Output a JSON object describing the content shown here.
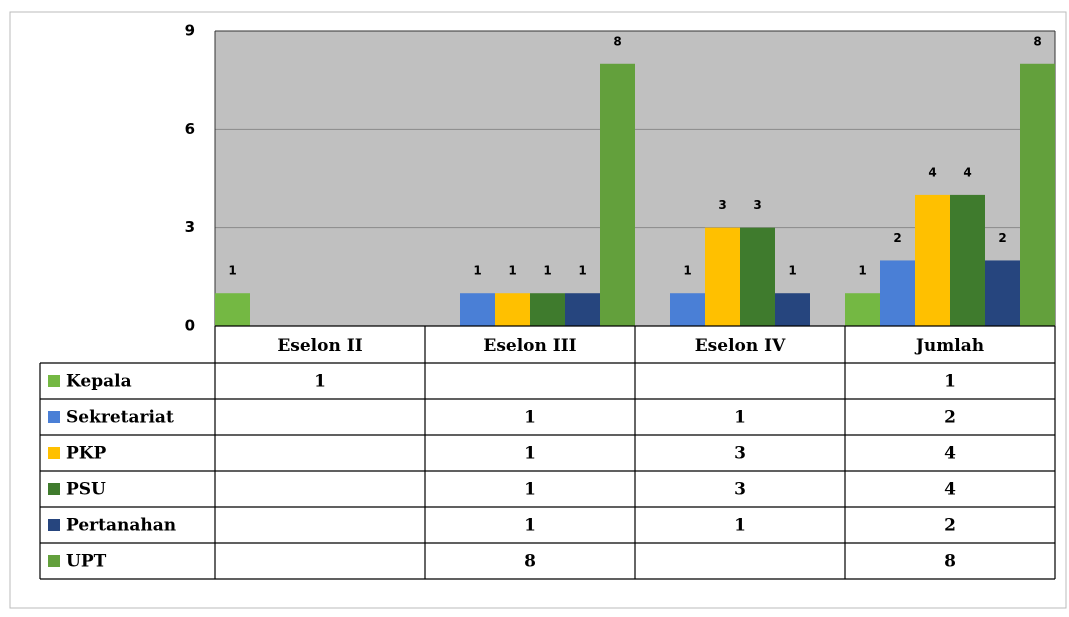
{
  "chart_data": {
    "type": "bar",
    "categories": [
      "Eselon II",
      "Eselon III",
      "Eselon IV",
      "Jumlah"
    ],
    "series": [
      {
        "name": "Kepala",
        "color": "#74b843",
        "values": [
          1,
          null,
          null,
          1
        ]
      },
      {
        "name": "Sekretariat",
        "color": "#4a7fd6",
        "values": [
          null,
          1,
          1,
          2
        ]
      },
      {
        "name": "PKP",
        "color": "#ffc000",
        "values": [
          null,
          1,
          3,
          4
        ]
      },
      {
        "name": "PSU",
        "color": "#3f7b2d",
        "values": [
          null,
          1,
          3,
          4
        ]
      },
      {
        "name": "Pertanahan",
        "color": "#26457e",
        "values": [
          null,
          1,
          1,
          2
        ]
      },
      {
        "name": "UPT",
        "color": "#63a03c",
        "values": [
          null,
          8,
          null,
          8
        ]
      }
    ],
    "ylim": [
      0,
      9
    ],
    "yticks": [
      0,
      3,
      6,
      9
    ],
    "grid": true
  }
}
